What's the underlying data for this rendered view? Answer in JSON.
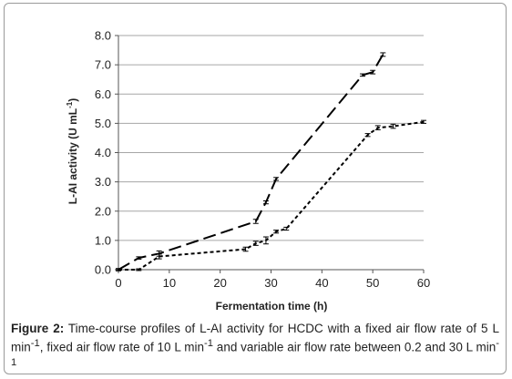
{
  "chart_data": {
    "type": "line",
    "xlabel": "Fermentation time (h)",
    "ylabel_main": "L-AI activity (U mL",
    "ylabel_sup": "-1",
    "ylabel_close": ")",
    "xlim": [
      0,
      60
    ],
    "ylim": [
      0,
      8
    ],
    "xticks": [
      0,
      10,
      20,
      30,
      40,
      50,
      60
    ],
    "xtick_labels": [
      "0",
      "10",
      "20",
      "30",
      "40",
      "50",
      "60"
    ],
    "yticks": [
      0,
      1,
      2,
      3,
      4,
      5,
      6,
      7,
      8
    ],
    "ytick_labels": [
      "0.0",
      "1.0",
      "2.0",
      "3.0",
      "4.0",
      "5.0",
      "6.0",
      "7.0",
      "8.0"
    ],
    "grid": "horizontal",
    "legend": "none",
    "series": [
      {
        "style": "long-dash",
        "x": [
          0,
          4,
          8,
          27,
          29,
          31,
          48,
          50,
          52
        ],
        "y": [
          0.0,
          0.4,
          0.55,
          1.65,
          2.3,
          3.1,
          6.65,
          6.75,
          7.35
        ],
        "err": [
          0.04,
          0.04,
          0.09,
          0.07,
          0.05,
          0.05,
          0.04,
          0.06,
          0.06
        ]
      },
      {
        "style": "short-dash",
        "x": [
          0,
          4,
          8,
          25,
          27,
          29,
          31,
          33,
          49,
          51,
          54,
          60
        ],
        "y": [
          0.0,
          0.0,
          0.45,
          0.7,
          0.9,
          1.0,
          1.3,
          1.4,
          4.6,
          4.85,
          4.9,
          5.05
        ],
        "err": [
          0.03,
          0.03,
          0.08,
          0.07,
          0.07,
          0.12,
          0.05,
          0.05,
          0.05,
          0.07,
          0.07,
          0.05
        ]
      }
    ]
  },
  "caption": {
    "label": "Figure 2:",
    "text_1": " Time-course profiles of L-AI activity for HCDC with a fixed air flow rate of 5 L min",
    "sup_1": "-1",
    "text_2": ", fixed air flow rate of 10 L min",
    "sup_2": "-1",
    "text_3": " and variable air flow rate between 0.2 and 30 L min",
    "sup_3": "-1"
  },
  "colors": {
    "line": "#000000",
    "grid": "#a6a6a6",
    "frame": "#9a9a9a"
  }
}
